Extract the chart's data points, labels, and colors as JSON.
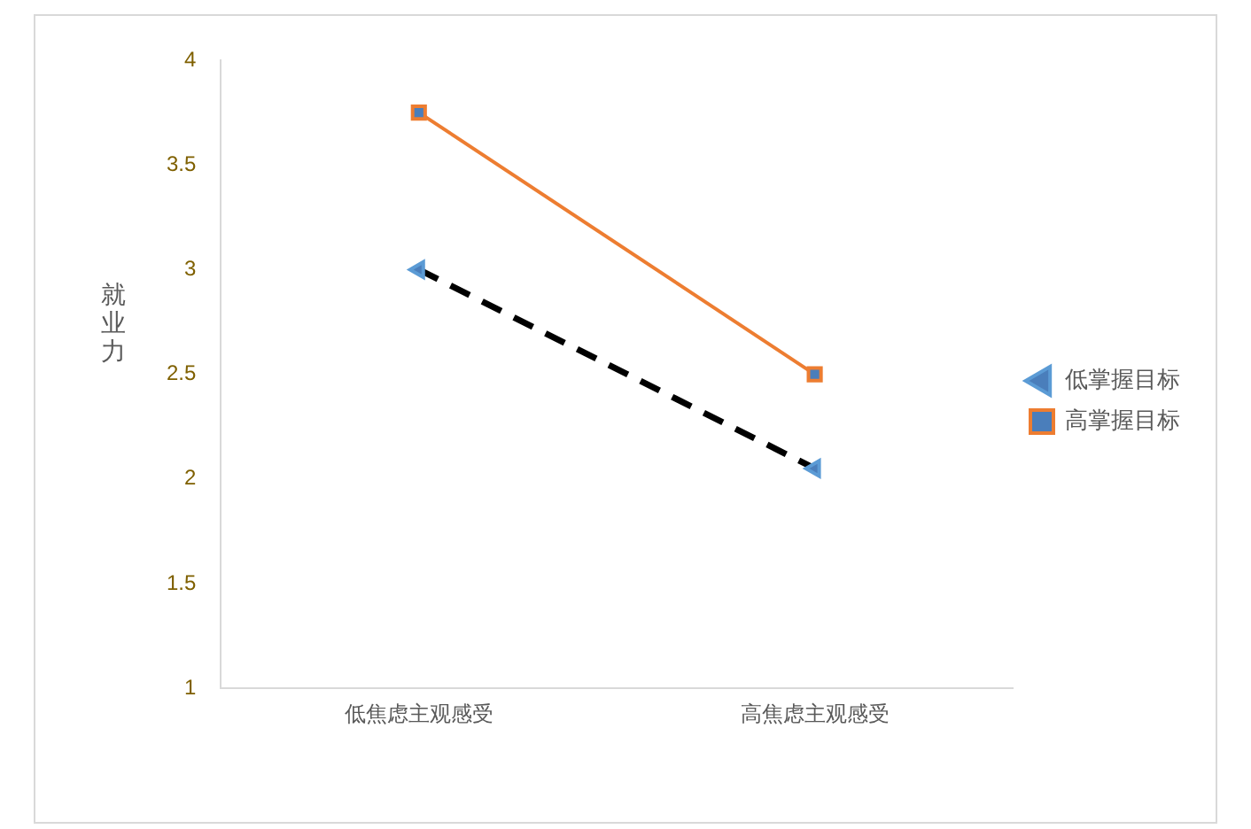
{
  "chart_data": {
    "type": "line",
    "ylabel": "就业力",
    "categories": [
      "低焦虑主观感受",
      "高焦虑主观感受"
    ],
    "series": [
      {
        "name": "低掌握目标",
        "color": "#000000",
        "values": [
          3.0,
          2.05
        ],
        "line_style": "dashed",
        "marker": "triangle"
      },
      {
        "name": "高掌握目标",
        "color": "#ed7d31",
        "values": [
          3.75,
          2.5
        ],
        "line_style": "solid",
        "marker": "square"
      }
    ],
    "ylim": [
      1,
      4
    ],
    "yticks": [
      1,
      1.5,
      2,
      2.5,
      3,
      3.5,
      4
    ],
    "grid": false,
    "legend": "right"
  }
}
